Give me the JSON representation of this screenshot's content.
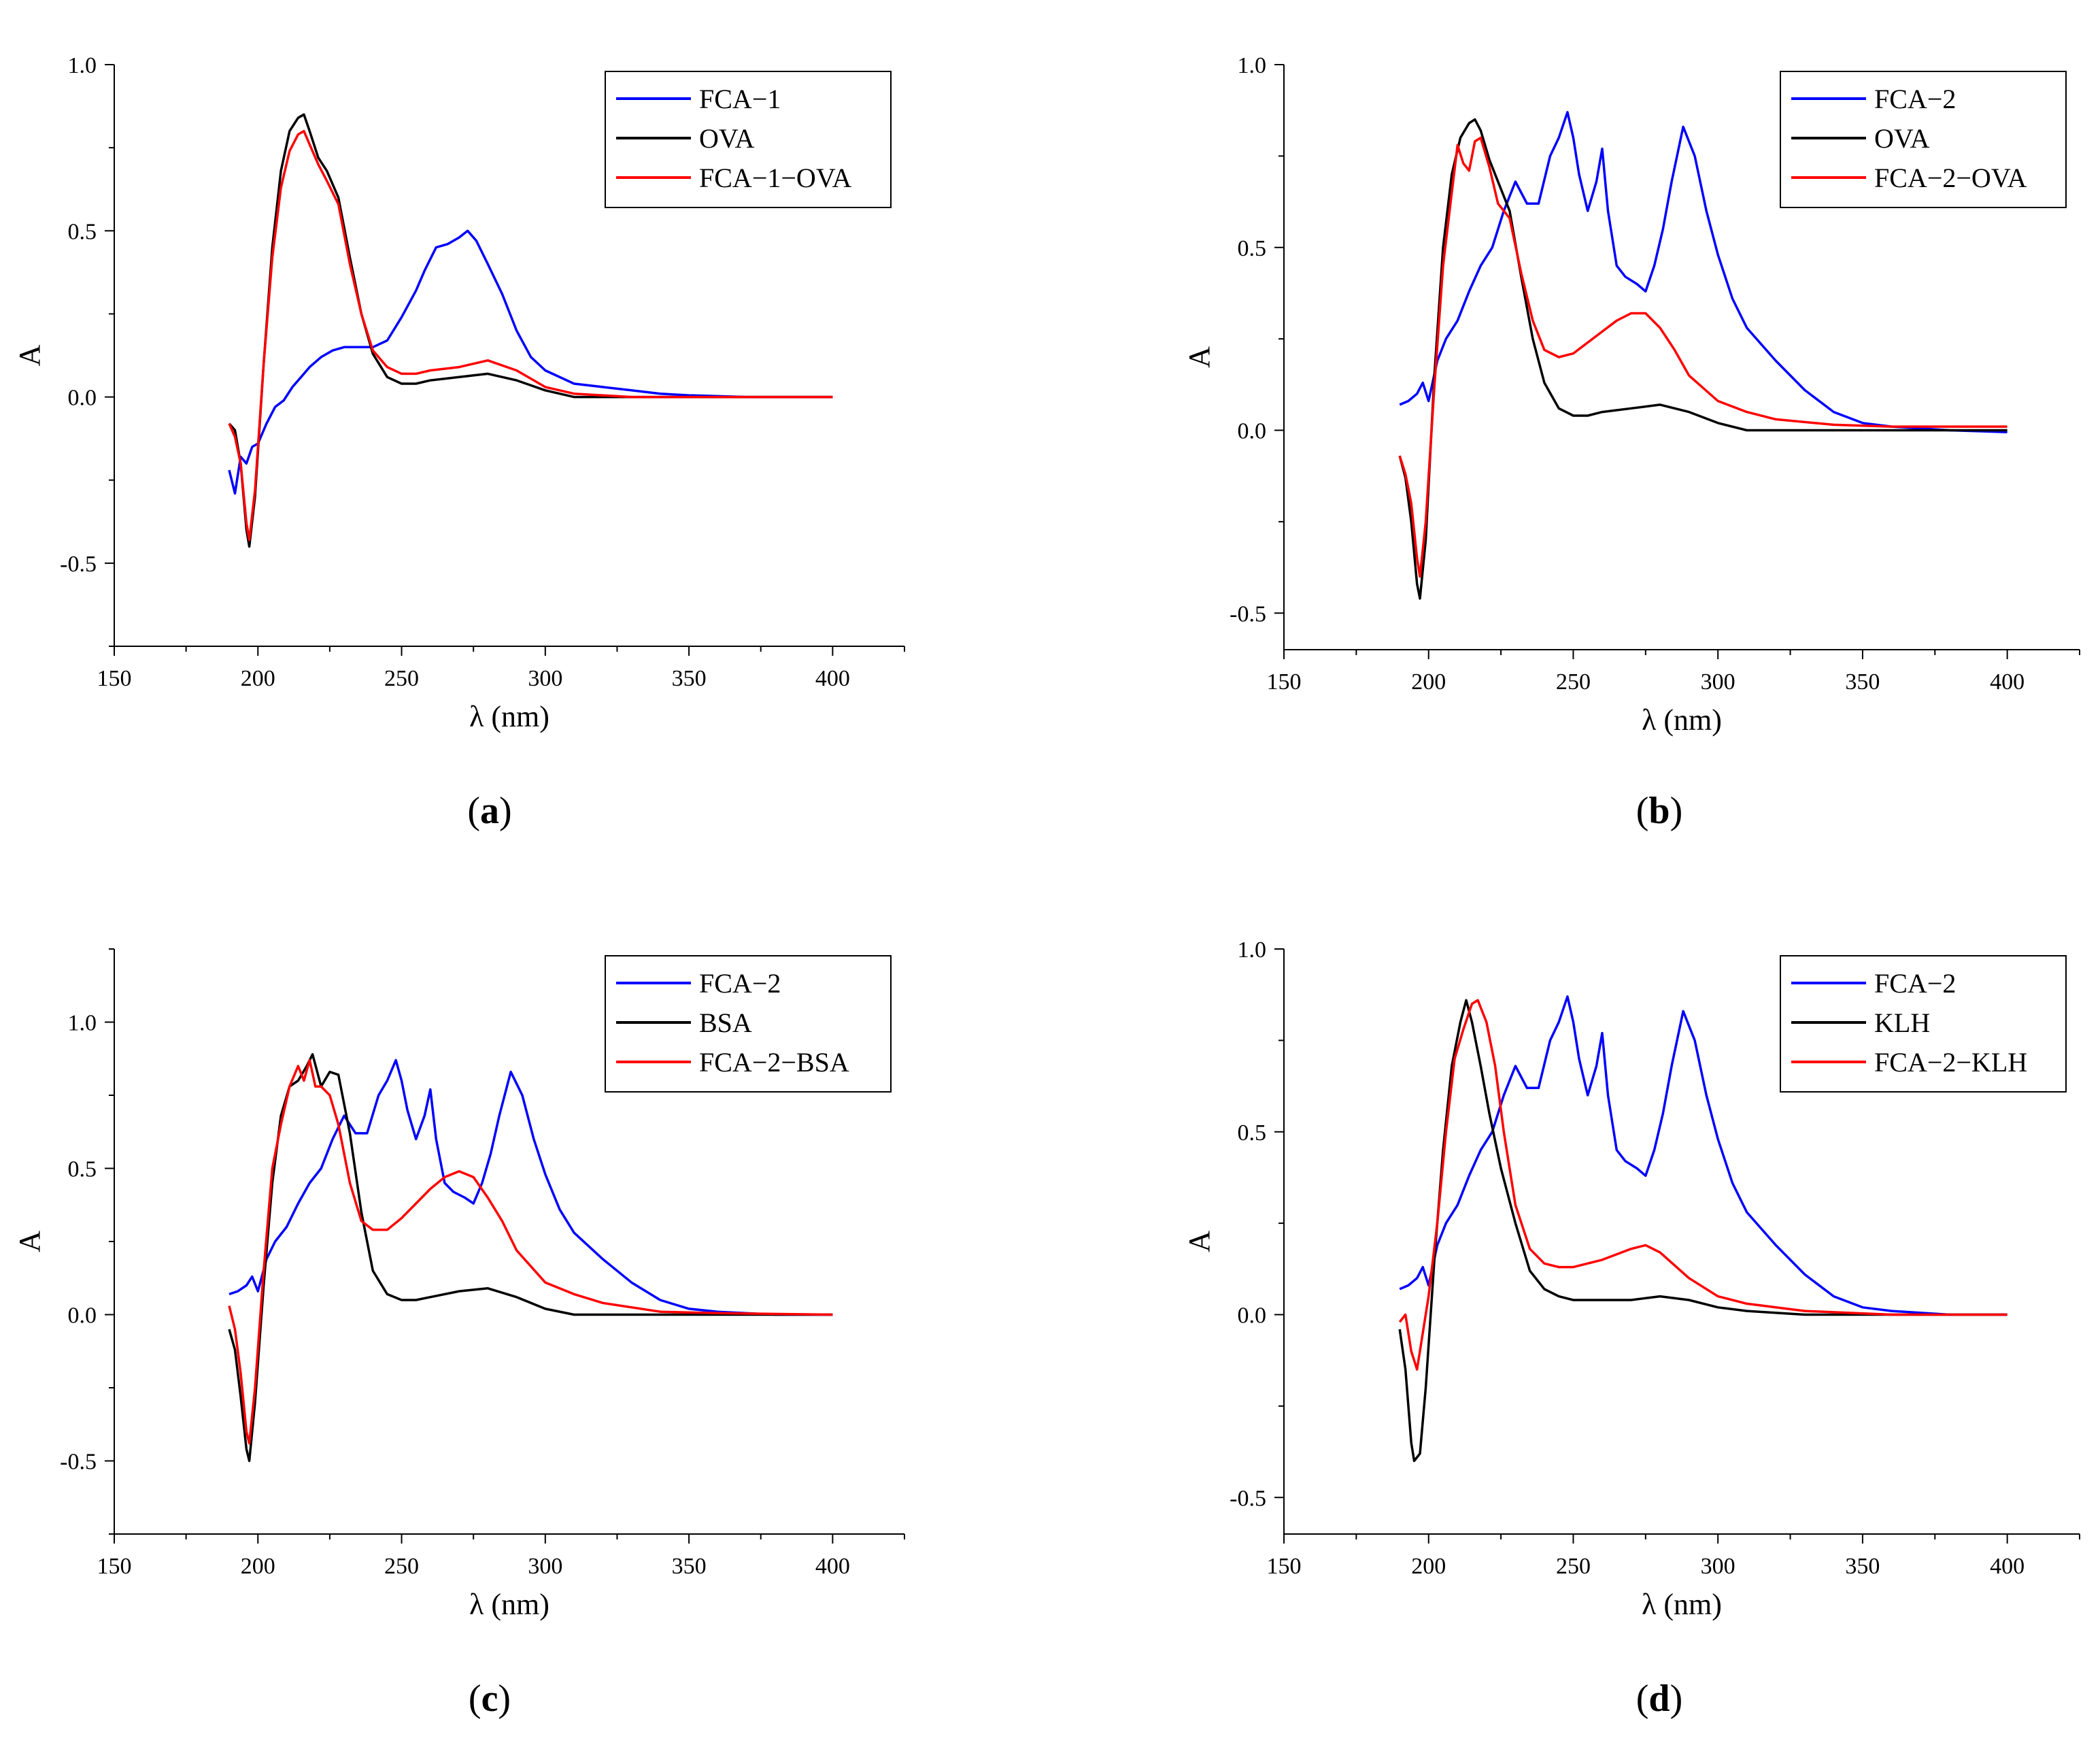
{
  "figure": {
    "panels": [
      {
        "id": "a",
        "caption_open": "(",
        "caption_letter": "a",
        "caption_close": ")"
      },
      {
        "id": "b",
        "caption_open": "(",
        "caption_letter": "b",
        "caption_close": ")"
      },
      {
        "id": "c",
        "caption_open": "(",
        "caption_letter": "c",
        "caption_close": ")"
      },
      {
        "id": "d",
        "caption_open": "(",
        "caption_letter": "d",
        "caption_close": ")"
      }
    ]
  },
  "chart_data": [
    {
      "type": "line",
      "panel": "a",
      "title": "",
      "xlabel": "λ (nm)",
      "ylabel": "A",
      "xlim": [
        150,
        425
      ],
      "ylim": [
        -0.75,
        1.0
      ],
      "x_ticks": [
        150,
        200,
        250,
        300,
        350,
        400
      ],
      "x_tick_labels": [
        "150",
        "200",
        "250",
        "300",
        "350",
        "400"
      ],
      "y_ticks": [
        -0.5,
        0.0,
        0.5,
        1.0
      ],
      "y_tick_labels": [
        "-0.5",
        "0.0",
        "0.5",
        "1.0"
      ],
      "legend_position": "top-right",
      "series": [
        {
          "name": "FCA−1",
          "color": "#0000ff",
          "x": [
            190,
            192,
            194,
            196,
            198,
            200,
            203,
            206,
            209,
            212,
            215,
            218,
            222,
            226,
            230,
            235,
            240,
            245,
            250,
            255,
            258,
            262,
            266,
            270,
            273,
            276,
            280,
            285,
            290,
            295,
            300,
            310,
            320,
            330,
            340,
            350,
            370,
            400
          ],
          "y": [
            -0.22,
            -0.29,
            -0.18,
            -0.2,
            -0.15,
            -0.14,
            -0.08,
            -0.03,
            -0.01,
            0.03,
            0.06,
            0.09,
            0.12,
            0.14,
            0.15,
            0.15,
            0.15,
            0.17,
            0.24,
            0.32,
            0.38,
            0.45,
            0.46,
            0.48,
            0.5,
            0.47,
            0.4,
            0.31,
            0.2,
            0.12,
            0.08,
            0.04,
            0.03,
            0.02,
            0.01,
            0.005,
            0.0,
            0.0
          ]
        },
        {
          "name": "OVA",
          "color": "#000000",
          "x": [
            190,
            192,
            194,
            196,
            197,
            199,
            202,
            205,
            208,
            211,
            214,
            216,
            218,
            221,
            224,
            228,
            232,
            236,
            240,
            245,
            250,
            255,
            260,
            270,
            280,
            290,
            300,
            310,
            330,
            360,
            400
          ],
          "y": [
            -0.08,
            -0.1,
            -0.2,
            -0.4,
            -0.45,
            -0.3,
            0.1,
            0.45,
            0.68,
            0.8,
            0.84,
            0.85,
            0.8,
            0.72,
            0.68,
            0.6,
            0.42,
            0.25,
            0.13,
            0.06,
            0.04,
            0.04,
            0.05,
            0.06,
            0.07,
            0.05,
            0.02,
            0.0,
            0.0,
            0.0,
            0.0
          ]
        },
        {
          "name": "FCA−1−OVA",
          "color": "#ff0000",
          "x": [
            190,
            192,
            194,
            196,
            197,
            199,
            202,
            205,
            208,
            211,
            214,
            216,
            218,
            221,
            224,
            228,
            232,
            236,
            240,
            245,
            250,
            255,
            260,
            270,
            280,
            290,
            300,
            310,
            330,
            360,
            400
          ],
          "y": [
            -0.08,
            -0.12,
            -0.2,
            -0.38,
            -0.43,
            -0.28,
            0.1,
            0.42,
            0.63,
            0.74,
            0.79,
            0.8,
            0.76,
            0.7,
            0.65,
            0.58,
            0.4,
            0.25,
            0.14,
            0.09,
            0.07,
            0.07,
            0.08,
            0.09,
            0.11,
            0.08,
            0.03,
            0.01,
            0.0,
            0.0,
            0.0
          ]
        }
      ]
    },
    {
      "type": "line",
      "panel": "b",
      "title": "",
      "xlabel": "λ (nm)",
      "ylabel": "A",
      "xlim": [
        150,
        425
      ],
      "ylim": [
        -0.6,
        1.0
      ],
      "x_ticks": [
        150,
        200,
        250,
        300,
        350,
        400
      ],
      "x_tick_labels": [
        "150",
        "200",
        "250",
        "300",
        "350",
        "400"
      ],
      "y_ticks": [
        -0.5,
        0.0,
        0.5,
        1.0
      ],
      "y_tick_labels": [
        "-0.5",
        "0.0",
        "0.5",
        "1.0"
      ],
      "legend_position": "top-right",
      "series": [
        {
          "name": "FCA−2",
          "color": "#0000ff",
          "x": [
            190,
            193,
            196,
            198,
            200,
            203,
            206,
            210,
            214,
            218,
            222,
            226,
            230,
            234,
            238,
            242,
            245,
            248,
            250,
            252,
            255,
            258,
            260,
            262,
            265,
            268,
            272,
            275,
            278,
            281,
            284,
            288,
            292,
            296,
            300,
            305,
            310,
            320,
            330,
            340,
            350,
            360,
            380,
            400
          ],
          "y": [
            0.07,
            0.08,
            0.1,
            0.13,
            0.08,
            0.19,
            0.25,
            0.3,
            0.38,
            0.45,
            0.5,
            0.6,
            0.68,
            0.62,
            0.62,
            0.75,
            0.8,
            0.87,
            0.8,
            0.7,
            0.6,
            0.68,
            0.77,
            0.6,
            0.45,
            0.42,
            0.4,
            0.38,
            0.45,
            0.55,
            0.68,
            0.83,
            0.75,
            0.6,
            0.48,
            0.36,
            0.28,
            0.19,
            0.11,
            0.05,
            0.02,
            0.01,
            0.0,
            -0.005
          ]
        },
        {
          "name": "OVA",
          "color": "#000000",
          "x": [
            190,
            192,
            194,
            196,
            197,
            199,
            202,
            205,
            208,
            211,
            214,
            216,
            218,
            221,
            224,
            228,
            232,
            236,
            240,
            245,
            250,
            255,
            260,
            270,
            280,
            290,
            300,
            310,
            330,
            360,
            400
          ],
          "y": [
            -0.07,
            -0.13,
            -0.25,
            -0.42,
            -0.46,
            -0.3,
            0.15,
            0.5,
            0.7,
            0.8,
            0.84,
            0.85,
            0.82,
            0.74,
            0.68,
            0.6,
            0.42,
            0.25,
            0.13,
            0.06,
            0.04,
            0.04,
            0.05,
            0.06,
            0.07,
            0.05,
            0.02,
            0.0,
            0.0,
            0.0,
            0.0
          ]
        },
        {
          "name": "FCA−2−OVA",
          "color": "#ff0000",
          "x": [
            190,
            192,
            194,
            196,
            197,
            199,
            202,
            205,
            208,
            210,
            212,
            214,
            216,
            218,
            221,
            224,
            228,
            232,
            236,
            240,
            245,
            250,
            255,
            260,
            265,
            270,
            275,
            280,
            285,
            290,
            300,
            310,
            320,
            340,
            360,
            400
          ],
          "y": [
            -0.07,
            -0.12,
            -0.2,
            -0.35,
            -0.4,
            -0.25,
            0.12,
            0.45,
            0.65,
            0.78,
            0.73,
            0.71,
            0.79,
            0.8,
            0.72,
            0.62,
            0.58,
            0.43,
            0.3,
            0.22,
            0.2,
            0.21,
            0.24,
            0.27,
            0.3,
            0.32,
            0.32,
            0.28,
            0.22,
            0.15,
            0.08,
            0.05,
            0.03,
            0.015,
            0.01,
            0.01
          ]
        }
      ]
    },
    {
      "type": "line",
      "panel": "c",
      "title": "",
      "xlabel": "λ (nm)",
      "ylabel": "A",
      "xlim": [
        150,
        425
      ],
      "ylim": [
        -0.75,
        1.25
      ],
      "x_ticks": [
        150,
        200,
        250,
        300,
        350,
        400
      ],
      "x_tick_labels": [
        "150",
        "200",
        "250",
        "300",
        "350",
        "400"
      ],
      "y_ticks": [
        -0.5,
        0.0,
        0.5,
        1.0
      ],
      "y_tick_labels": [
        "-0.5",
        "0.0",
        "0.5",
        "1.0"
      ],
      "legend_position": "top-right",
      "series": [
        {
          "name": "FCA−2",
          "color": "#0000ff",
          "x": [
            190,
            193,
            196,
            198,
            200,
            203,
            206,
            210,
            214,
            218,
            222,
            226,
            230,
            234,
            238,
            242,
            245,
            248,
            250,
            252,
            255,
            258,
            260,
            262,
            265,
            268,
            272,
            275,
            278,
            281,
            284,
            288,
            292,
            296,
            300,
            305,
            310,
            320,
            330,
            340,
            350,
            360,
            380,
            400
          ],
          "y": [
            0.07,
            0.08,
            0.1,
            0.13,
            0.08,
            0.19,
            0.25,
            0.3,
            0.38,
            0.45,
            0.5,
            0.6,
            0.68,
            0.62,
            0.62,
            0.75,
            0.8,
            0.87,
            0.8,
            0.7,
            0.6,
            0.68,
            0.77,
            0.6,
            0.45,
            0.42,
            0.4,
            0.38,
            0.45,
            0.55,
            0.68,
            0.83,
            0.75,
            0.6,
            0.48,
            0.36,
            0.28,
            0.19,
            0.11,
            0.05,
            0.02,
            0.01,
            0.0,
            0.0
          ]
        },
        {
          "name": "BSA",
          "color": "#000000",
          "x": [
            190,
            192,
            194,
            196,
            197,
            199,
            202,
            205,
            208,
            211,
            214,
            217,
            219,
            222,
            225,
            228,
            232,
            236,
            240,
            245,
            250,
            255,
            260,
            270,
            280,
            290,
            300,
            310,
            330,
            360,
            400
          ],
          "y": [
            -0.05,
            -0.12,
            -0.28,
            -0.46,
            -0.5,
            -0.3,
            0.1,
            0.45,
            0.68,
            0.78,
            0.8,
            0.85,
            0.89,
            0.78,
            0.83,
            0.82,
            0.62,
            0.35,
            0.15,
            0.07,
            0.05,
            0.05,
            0.06,
            0.08,
            0.09,
            0.06,
            0.02,
            0.0,
            0.0,
            0.0,
            0.0
          ]
        },
        {
          "name": "FCA−2−BSA",
          "color": "#ff0000",
          "x": [
            190,
            192,
            194,
            196,
            197,
            199,
            202,
            205,
            208,
            211,
            214,
            216,
            218,
            220,
            222,
            225,
            228,
            232,
            236,
            240,
            245,
            250,
            255,
            260,
            265,
            270,
            275,
            280,
            285,
            290,
            300,
            310,
            320,
            340,
            360,
            400
          ],
          "y": [
            0.03,
            -0.05,
            -0.2,
            -0.4,
            -0.44,
            -0.25,
            0.15,
            0.5,
            0.65,
            0.78,
            0.85,
            0.8,
            0.87,
            0.78,
            0.78,
            0.75,
            0.65,
            0.45,
            0.32,
            0.29,
            0.29,
            0.33,
            0.38,
            0.43,
            0.47,
            0.49,
            0.47,
            0.4,
            0.32,
            0.22,
            0.11,
            0.07,
            0.04,
            0.01,
            0.005,
            0.0
          ]
        }
      ]
    },
    {
      "type": "line",
      "panel": "d",
      "title": "",
      "xlabel": "λ (nm)",
      "ylabel": "A",
      "xlim": [
        150,
        425
      ],
      "ylim": [
        -0.6,
        1.0
      ],
      "x_ticks": [
        150,
        200,
        250,
        300,
        350,
        400
      ],
      "x_tick_labels": [
        "150",
        "200",
        "250",
        "300",
        "350",
        "400"
      ],
      "y_ticks": [
        -0.5,
        0.0,
        0.5,
        1.0
      ],
      "y_tick_labels": [
        "-0.5",
        "0.0",
        "0.5",
        "1.0"
      ],
      "legend_position": "top-right",
      "series": [
        {
          "name": "FCA−2",
          "color": "#0000ff",
          "x": [
            190,
            193,
            196,
            198,
            200,
            203,
            206,
            210,
            214,
            218,
            222,
            226,
            230,
            234,
            238,
            242,
            245,
            248,
            250,
            252,
            255,
            258,
            260,
            262,
            265,
            268,
            272,
            275,
            278,
            281,
            284,
            288,
            292,
            296,
            300,
            305,
            310,
            320,
            330,
            340,
            350,
            360,
            380,
            400
          ],
          "y": [
            0.07,
            0.08,
            0.1,
            0.13,
            0.08,
            0.19,
            0.25,
            0.3,
            0.38,
            0.45,
            0.5,
            0.6,
            0.68,
            0.62,
            0.62,
            0.75,
            0.8,
            0.87,
            0.8,
            0.7,
            0.6,
            0.68,
            0.77,
            0.6,
            0.45,
            0.42,
            0.4,
            0.38,
            0.45,
            0.55,
            0.68,
            0.83,
            0.75,
            0.6,
            0.48,
            0.36,
            0.28,
            0.19,
            0.11,
            0.05,
            0.02,
            0.01,
            0.0,
            0.0
          ]
        },
        {
          "name": "KLH",
          "color": "#000000",
          "x": [
            190,
            192,
            194,
            195,
            197,
            199,
            202,
            205,
            208,
            211,
            213,
            215,
            218,
            221,
            225,
            230,
            235,
            240,
            245,
            250,
            260,
            270,
            280,
            290,
            300,
            310,
            330,
            360,
            400
          ],
          "y": [
            -0.04,
            -0.15,
            -0.35,
            -0.4,
            -0.38,
            -0.2,
            0.15,
            0.45,
            0.68,
            0.8,
            0.86,
            0.8,
            0.68,
            0.55,
            0.4,
            0.25,
            0.12,
            0.07,
            0.05,
            0.04,
            0.04,
            0.04,
            0.05,
            0.04,
            0.02,
            0.01,
            0.0,
            0.0,
            0.0
          ]
        },
        {
          "name": "FCA−2−KLH",
          "color": "#ff0000",
          "x": [
            190,
            192,
            194,
            196,
            198,
            200,
            203,
            206,
            209,
            212,
            215,
            217,
            220,
            223,
            226,
            230,
            235,
            240,
            245,
            250,
            260,
            270,
            275,
            280,
            290,
            300,
            310,
            330,
            360,
            400
          ],
          "y": [
            -0.02,
            0.0,
            -0.1,
            -0.15,
            -0.05,
            0.05,
            0.25,
            0.5,
            0.7,
            0.78,
            0.85,
            0.86,
            0.8,
            0.68,
            0.5,
            0.3,
            0.18,
            0.14,
            0.13,
            0.13,
            0.15,
            0.18,
            0.19,
            0.17,
            0.1,
            0.05,
            0.03,
            0.01,
            0.0,
            0.0
          ]
        }
      ]
    }
  ]
}
